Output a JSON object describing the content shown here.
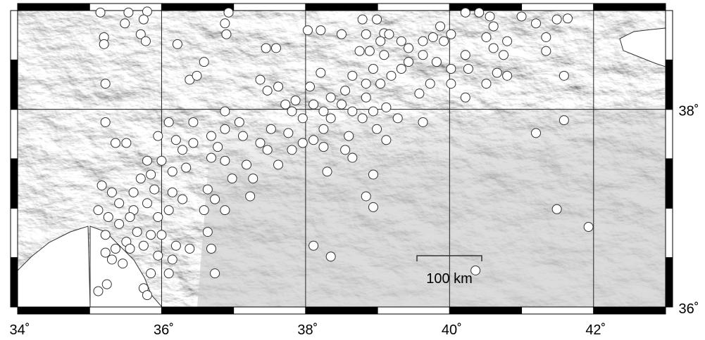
{
  "map": {
    "xlim": [
      34,
      43
    ],
    "ylim": [
      36,
      39
    ],
    "xticks": [
      {
        "value": 34,
        "label": "34˚"
      },
      {
        "value": 36,
        "label": "36˚"
      },
      {
        "value": 38,
        "label": "38˚"
      },
      {
        "value": 40,
        "label": "40˚"
      },
      {
        "value": 42,
        "label": "42˚"
      }
    ],
    "yticks": [
      {
        "value": 36,
        "label": "36˚"
      },
      {
        "value": 38,
        "label": "38˚"
      }
    ],
    "scale_bar": {
      "label": "100 km"
    },
    "epicenters": {
      "lon": [
        35.15,
        35.54,
        35.8,
        35.49,
        35.75,
        35.2,
        35.2,
        35.71,
        35.78,
        36.22,
        35.22,
        36.39,
        36.59,
        36.49,
        36.93,
        36.88,
        36.9,
        37.45,
        37.59,
        38.03,
        38.21,
        38.5,
        38.79,
        38.99,
        38.84,
        39.09,
        39.16,
        39.04,
        38.75,
        38.89,
        39.09,
        39.33,
        39.43,
        39.63,
        39.77,
        39.87,
        39.92,
        40.02,
        40.22,
        40.41,
        40.56,
        40.61,
        40.51,
        40.8,
        41.0,
        41.2,
        41.34,
        41.49,
        41.64,
        41.34,
        41.59,
        40.61,
        40.75,
        40.22,
        40.26,
        40.51,
        40.66,
        40.8,
        40.02,
        39.82,
        39.63,
        39.43,
        39.33,
        39.19,
        39.04,
        38.94,
        38.84,
        38.65,
        38.55,
        38.35,
        38.21,
        38.06,
        37.86,
        37.72,
        37.81,
        37.96,
        38.11,
        38.25,
        38.5,
        38.65,
        38.84,
        38.94,
        39.12,
        39.28,
        39.63,
        39.58,
        39.73,
        40.22,
        40.02,
        38.79,
        38.99,
        39.12,
        38.35,
        38.25,
        38.11,
        37.96,
        37.76,
        37.52,
        37.37,
        37.47,
        37.62,
        37.81,
        38.25,
        38.6,
        38.55,
        38.65,
        38.3,
        38.94,
        38.84,
        38.94,
        37.47,
        37.62,
        37.37,
        37.08,
        36.88,
        37.13,
        37.18,
        37.27,
        37.23,
        36.98,
        36.69,
        36.78,
        36.69,
        36.88,
        36.64,
        36.74,
        36.88,
        36.59,
        36.64,
        36.39,
        36.69,
        36.74,
        36.88,
        36.1,
        35.95,
        36.2,
        36.29,
        36.0,
        36.15,
        36.34,
        36.44,
        35.8,
        35.85,
        35.9,
        36.15,
        36.29,
        36.1,
        35.95,
        35.8,
        35.61,
        35.41,
        35.17,
        35.31,
        35.12,
        35.26,
        35.22,
        35.41,
        35.56,
        35.66,
        35.51,
        35.36,
        35.22,
        35.31,
        35.46,
        35.56,
        35.75,
        35.85,
        36.0,
        36.15,
        36.1,
        35.85,
        35.75,
        35.8,
        35.12,
        35.24,
        35.22,
        35.36,
        35.51,
        35.61,
        35.71,
        36.44,
        41.2,
        41.59,
        41.49,
        41.93,
        38.11,
        38.35,
        40.36,
        35.95,
        36.2
      ],
      "lat": [
        38.98,
        38.98,
        38.99,
        38.87,
        38.91,
        38.73,
        38.66,
        38.76,
        38.69,
        38.66,
        38.26,
        38.3,
        38.48,
        38.34,
        38.98,
        38.87,
        38.76,
        38.62,
        38.62,
        38.8,
        38.8,
        38.76,
        38.91,
        38.91,
        38.76,
        38.77,
        38.76,
        38.69,
        38.59,
        38.59,
        38.55,
        38.69,
        38.62,
        38.69,
        38.73,
        38.84,
        38.69,
        38.76,
        38.98,
        38.98,
        38.94,
        38.84,
        38.73,
        38.69,
        38.94,
        38.87,
        38.73,
        38.91,
        38.92,
        38.59,
        38.34,
        38.62,
        38.55,
        38.55,
        38.41,
        38.26,
        38.37,
        38.34,
        38.41,
        38.48,
        38.55,
        38.48,
        38.41,
        38.34,
        38.26,
        38.41,
        38.26,
        38.34,
        38.19,
        38.12,
        38.37,
        38.23,
        38.09,
        38.05,
        37.98,
        37.91,
        38.05,
        37.98,
        38.05,
        37.98,
        38.12,
        37.98,
        38.02,
        37.91,
        37.87,
        38.16,
        38.26,
        38.12,
        38.26,
        37.91,
        37.8,
        37.69,
        37.91,
        37.8,
        37.69,
        37.66,
        37.76,
        37.8,
        37.66,
        37.59,
        37.44,
        37.59,
        37.62,
        37.73,
        37.59,
        37.51,
        37.37,
        37.34,
        37.12,
        37.01,
        38.19,
        38.23,
        38.3,
        37.87,
        37.8,
        37.73,
        37.44,
        37.3,
        37.12,
        37.3,
        37.73,
        37.62,
        37.51,
        37.48,
        37.19,
        37.09,
        36.98,
        36.98,
        36.76,
        36.59,
        36.59,
        36.34,
        37.98,
        37.87,
        37.73,
        37.69,
        37.59,
        37.48,
        37.37,
        37.41,
        37.66,
        37.48,
        37.34,
        37.19,
        37.16,
        37.09,
        36.98,
        36.91,
        37.05,
        36.98,
        37.05,
        37.23,
        37.16,
        36.98,
        36.91,
        36.73,
        36.84,
        36.91,
        36.76,
        36.66,
        36.59,
        36.55,
        36.48,
        36.44,
        36.59,
        36.62,
        36.73,
        36.73,
        36.48,
        36.34,
        36.34,
        36.19,
        36.12,
        36.16,
        36.23,
        37.87,
        37.66,
        37.66,
        37.16,
        37.3,
        37.87,
        37.76,
        37.89,
        36.99,
        36.81,
        36.62,
        36.51,
        36.37,
        36.52,
        36.62
      ]
    }
  }
}
